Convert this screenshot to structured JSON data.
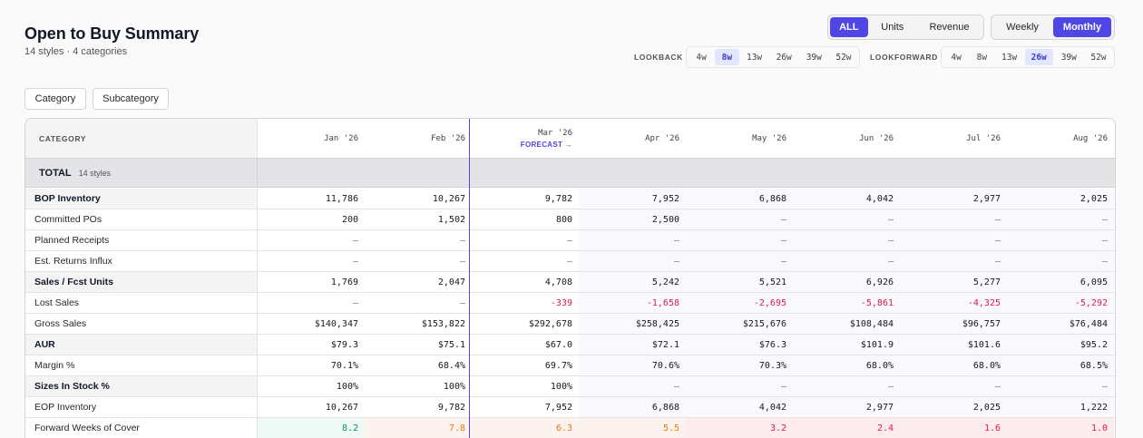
{
  "header": {
    "title": "Open to Buy Summary",
    "subtitle": "14 styles · 4 categories"
  },
  "mode_toggle": {
    "options": [
      "ALL",
      "Units",
      "Revenue"
    ],
    "active": "ALL"
  },
  "period_toggle": {
    "options": [
      "Weekly",
      "Monthly"
    ],
    "active": "Monthly"
  },
  "lookback": {
    "label": "LOOKBACK",
    "options": [
      "4w",
      "8w",
      "13w",
      "26w",
      "39w",
      "52w"
    ],
    "active": "8w"
  },
  "lookforward": {
    "label": "LOOKFORWARD",
    "options": [
      "4w",
      "8w",
      "13w",
      "26w",
      "39w",
      "52w"
    ],
    "active": "26w"
  },
  "grouping": {
    "category": "Category",
    "subcategory": "Subcategory"
  },
  "table": {
    "category_header": "CATEGORY",
    "months": [
      "Jan '26",
      "Feb '26",
      "Mar '26",
      "Apr '26",
      "May '26",
      "Jun '26",
      "Jul '26",
      "Aug '26"
    ],
    "forecast_tag": "FORECAST →",
    "total_label": "TOTAL",
    "total_sub": "14 styles",
    "rows": [
      {
        "label": "BOP Inventory",
        "bold": true,
        "values": [
          "11,786",
          "10,267",
          "9,782",
          "7,952",
          "6,868",
          "4,042",
          "2,977",
          "2,025"
        ]
      },
      {
        "label": "Committed POs",
        "bold": false,
        "values": [
          "200",
          "1,502",
          "800",
          "2,500",
          "—",
          "—",
          "—",
          "—"
        ]
      },
      {
        "label": "Planned Receipts",
        "bold": false,
        "values": [
          "—",
          "—",
          "—",
          "—",
          "—",
          "—",
          "—",
          "—"
        ]
      },
      {
        "label": "Est. Returns Influx",
        "bold": false,
        "values": [
          "—",
          "—",
          "—",
          "—",
          "—",
          "—",
          "—",
          "—"
        ]
      },
      {
        "label": "Sales / Fcst Units",
        "bold": true,
        "values": [
          "1,769",
          "2,047",
          "4,708",
          "5,242",
          "5,521",
          "6,926",
          "5,277",
          "6,095"
        ]
      },
      {
        "label": "Lost Sales",
        "bold": false,
        "values": [
          "—",
          "—",
          "-339",
          "-1,658",
          "-2,695",
          "-5,861",
          "-4,325",
          "-5,292"
        ]
      },
      {
        "label": "Gross Sales",
        "bold": false,
        "values": [
          "$140,347",
          "$153,822",
          "$292,678",
          "$258,425",
          "$215,676",
          "$108,484",
          "$96,757",
          "$76,484"
        ]
      },
      {
        "label": "AUR",
        "bold": true,
        "values": [
          "$79.3",
          "$75.1",
          "$67.0",
          "$72.1",
          "$76.3",
          "$101.9",
          "$101.6",
          "$95.2"
        ]
      },
      {
        "label": "Margin %",
        "bold": false,
        "values": [
          "70.1%",
          "68.4%",
          "69.7%",
          "70.6%",
          "70.3%",
          "68.0%",
          "68.0%",
          "68.5%"
        ]
      },
      {
        "label": "Sizes In Stock %",
        "bold": true,
        "values": [
          "100%",
          "100%",
          "100%",
          "—",
          "—",
          "—",
          "—",
          "—"
        ]
      },
      {
        "label": "EOP Inventory",
        "bold": false,
        "values": [
          "10,267",
          "9,782",
          "7,952",
          "6,868",
          "4,042",
          "2,977",
          "2,025",
          "1,222"
        ]
      },
      {
        "label": "Forward Weeks of Cover",
        "bold": false,
        "values": [
          "8.2",
          "7.8",
          "6.3",
          "5.5",
          "3.2",
          "2.4",
          "1.6",
          "1.0"
        ],
        "status": [
          "green",
          "orange",
          "orange",
          "orange",
          "red",
          "red",
          "red",
          "red"
        ]
      }
    ]
  },
  "colors": {
    "accent": "#4f46e5",
    "negative": "#e11d48",
    "good": "#0f8f7a",
    "warn": "#ea7c0c"
  }
}
